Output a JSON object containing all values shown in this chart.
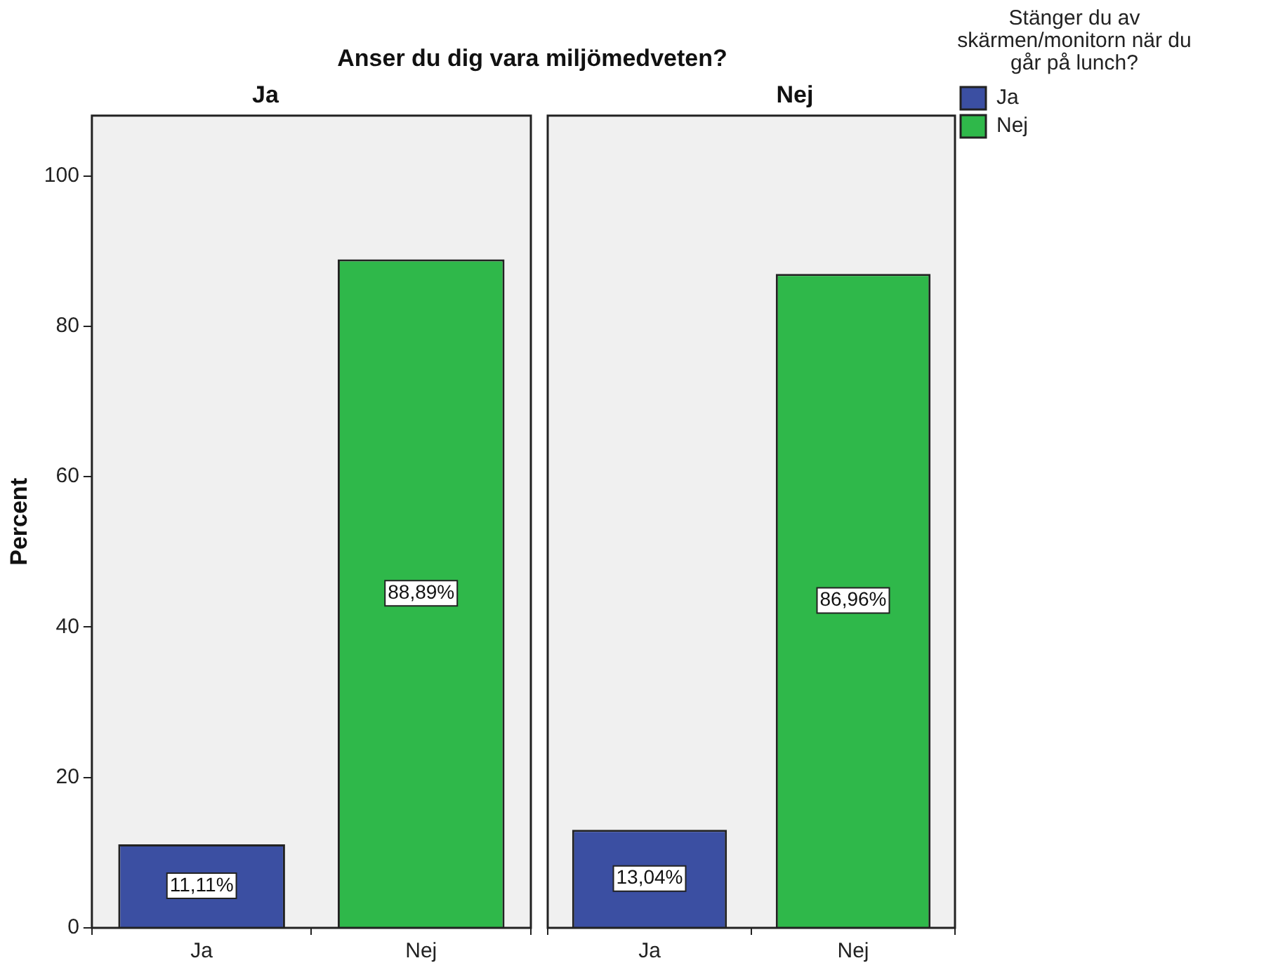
{
  "chart_data": [
    {
      "type": "bar",
      "title": "Anser du dig vara miljömedveten?",
      "subtitle": "Ja",
      "ylabel": "Percent",
      "categories": [
        "Ja",
        "Nej"
      ],
      "stacked": true,
      "ylim": [
        0,
        108
      ],
      "yticks": [
        0,
        20,
        40,
        60,
        80,
        100
      ],
      "series": [
        {
          "color": "#3b4fa2",
          "values": [
            11.11,
            null
          ],
          "value_labels": [
            "11,11%",
            null
          ]
        },
        {
          "color": "#2fb84a",
          "values": [
            null,
            88.89
          ],
          "value_labels": [
            null,
            "88,89%"
          ]
        }
      ]
    },
    {
      "type": "bar",
      "subtitle": "Nej",
      "categories": [
        "Ja",
        "Nej"
      ],
      "stacked": true,
      "ylim": [
        0,
        108
      ],
      "yticks": [
        0,
        20,
        40,
        60,
        80,
        100
      ],
      "tick_labels": "x",
      "legend": "right",
      "legend_title": "Stänger du av skärmen/monitorn när du går på lunch?",
      "series": [
        {
          "name": "Ja",
          "color": "#3b4fa2",
          "values": [
            13.04,
            null
          ],
          "value_labels": [
            "13,04%",
            null
          ]
        },
        {
          "name": "Nej",
          "color": "#2fb84a",
          "values": [
            null,
            86.96
          ],
          "value_labels": [
            null,
            "86,96%"
          ]
        }
      ]
    }
  ]
}
